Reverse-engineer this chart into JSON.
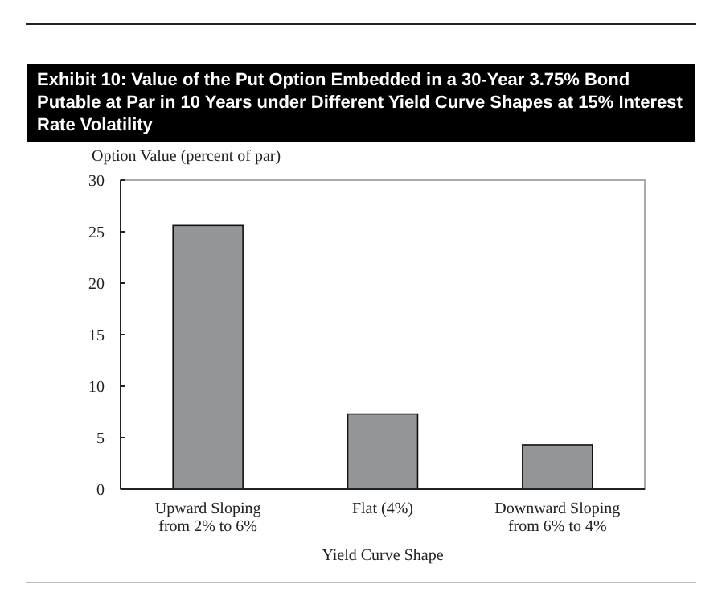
{
  "chart_data": {
    "type": "bar",
    "title": "Exhibit 10: Value of the Put Option Embedded in a 30-Year 3.75% Bond Putable at Par in 10 Years under Different Yield Curve Shapes at 15% Interest Rate Volatility",
    "ylabel": "Option Value (percent of par)",
    "xlabel": "Yield Curve Shape",
    "categories": [
      "Upward Sloping\nfrom 2% to 6%",
      "Flat (4%)",
      "Downward Sloping\nfrom 6% to 4%"
    ],
    "values": [
      25.6,
      7.3,
      4.3
    ],
    "color": "#939598",
    "ylim": [
      0,
      30
    ],
    "yticks": [
      0,
      5,
      10,
      15,
      20,
      25,
      30
    ],
    "grid": false
  }
}
